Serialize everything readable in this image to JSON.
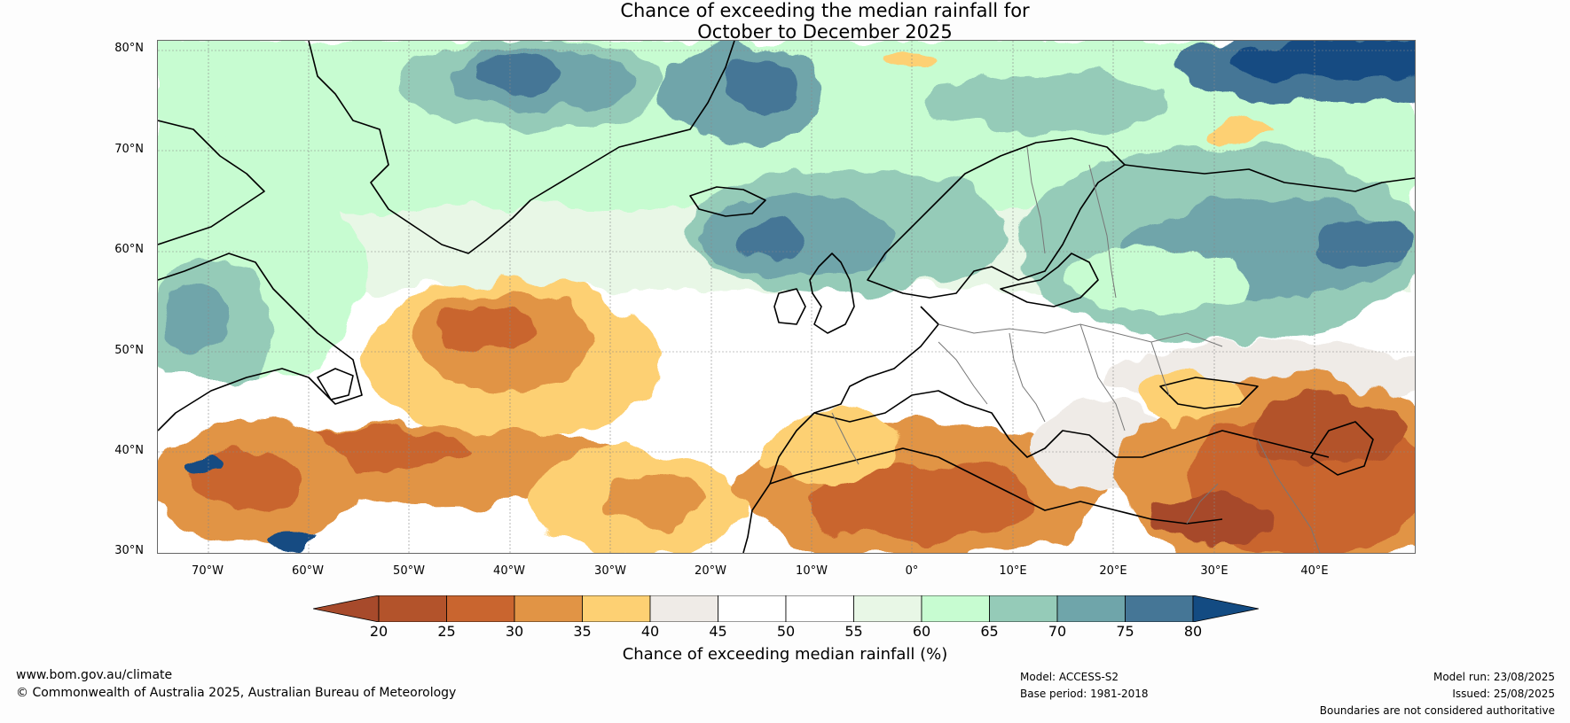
{
  "title": {
    "line1": "Chance of exceeding the median rainfall for",
    "line2": "October to December 2025"
  },
  "map": {
    "lat_labels": [
      "80°N",
      "70°N",
      "60°N",
      "50°N",
      "40°N",
      "30°N"
    ],
    "lon_labels": [
      "70°W",
      "60°W",
      "50°W",
      "40°W",
      "30°W",
      "20°W",
      "10°W",
      "0°",
      "10°E",
      "20°E",
      "30°E",
      "40°E"
    ],
    "extent": {
      "lon_min": -75,
      "lon_max": 50,
      "lat_min": 30,
      "lat_max": 81
    },
    "dry_regions": [
      "North Atlantic (~45–55°N, 30–50°W)",
      "Subtropical Atlantic (~30–45°N)",
      "Iberia",
      "North Africa",
      "Turkey and Middle East"
    ],
    "wet_regions": [
      "Greenland Sea / Arctic",
      "Norwegian Sea",
      "Scandinavia and western Russia",
      "Labrador coast"
    ]
  },
  "colorbar": {
    "ticks": [
      "20",
      "25",
      "30",
      "35",
      "40",
      "45",
      "50",
      "55",
      "60",
      "65",
      "70",
      "75",
      "80"
    ],
    "colors": [
      "#a74a2b",
      "#b3532b",
      "#c9652f",
      "#e19445",
      "#fdd073",
      "#efebe7",
      "#ffffff",
      "#ffffff",
      "#e8f7e6",
      "#c7fcd1",
      "#95cbb8",
      "#6fa5aa",
      "#457696",
      "#134b82"
    ],
    "label": "Chance of exceeding median rainfall (%)"
  },
  "footer": {
    "website": "www.bom.gov.au/climate",
    "copyright": "© Commonwealth of Australia 2025, Australian Bureau of Meteorology",
    "model": "Model: ACCESS-S2",
    "base_period": "Base period: 1981-2018",
    "model_run": "Model run: 23/08/2025",
    "issued": "Issued: 25/08/2025",
    "disclaimer": "Boundaries are not considered authoritative"
  }
}
